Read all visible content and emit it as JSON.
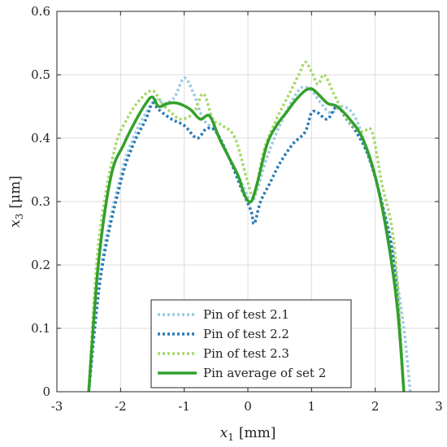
{
  "chart_data": {
    "type": "line",
    "title": "",
    "xlabel": {
      "var": "x",
      "sub": "1",
      "unit": "[mm]"
    },
    "ylabel": {
      "var": "x",
      "sub": "3",
      "unit": "[μm]"
    },
    "xlim": [
      -3,
      3
    ],
    "ylim": [
      0,
      0.6
    ],
    "xticks": [
      -3,
      -2,
      -1,
      0,
      1,
      2,
      3
    ],
    "yticks": [
      0,
      0.1,
      0.2,
      0.3,
      0.4,
      0.5,
      0.6
    ],
    "xtick_labels": [
      "-3",
      "-2",
      "-1",
      "0",
      "1",
      "2",
      "3"
    ],
    "ytick_labels": [
      "0",
      "0.1",
      "0.2",
      "0.3",
      "0.4",
      "0.5",
      "0.6"
    ],
    "grid": true,
    "legend_position": "bottom-center",
    "series": [
      {
        "name": "Pin of test 2.1",
        "color": "#9ecae1",
        "style": "dotted",
        "x": [
          -2.5,
          -2.3,
          -2.0,
          -1.8,
          -1.6,
          -1.45,
          -1.3,
          -1.15,
          -1.0,
          -0.85,
          -0.7,
          -0.5,
          -0.3,
          -0.1,
          0.05,
          0.15,
          0.3,
          0.5,
          0.7,
          0.85,
          1.0,
          1.15,
          1.3,
          1.5,
          1.7,
          1.9,
          2.1,
          2.3,
          2.45,
          2.55
        ],
        "y": [
          0.0,
          0.2,
          0.34,
          0.4,
          0.44,
          0.46,
          0.455,
          0.465,
          0.495,
          0.47,
          0.43,
          0.41,
          0.37,
          0.33,
          0.3,
          0.32,
          0.37,
          0.42,
          0.46,
          0.48,
          0.475,
          0.455,
          0.44,
          0.45,
          0.43,
          0.37,
          0.3,
          0.2,
          0.1,
          0.0
        ]
      },
      {
        "name": "Pin of test 2.2",
        "color": "#2c7bb6",
        "style": "dotted",
        "x": [
          -2.5,
          -2.3,
          -2.0,
          -1.8,
          -1.6,
          -1.5,
          -1.4,
          -1.2,
          -1.0,
          -0.8,
          -0.65,
          -0.5,
          -0.3,
          -0.1,
          0.05,
          0.1,
          0.2,
          0.35,
          0.5,
          0.7,
          0.9,
          1.0,
          1.1,
          1.25,
          1.4,
          1.55,
          1.7,
          1.9,
          2.1,
          2.3,
          2.45
        ],
        "y": [
          0.0,
          0.19,
          0.33,
          0.39,
          0.43,
          0.455,
          0.445,
          0.43,
          0.42,
          0.4,
          0.415,
          0.41,
          0.37,
          0.32,
          0.285,
          0.265,
          0.3,
          0.33,
          0.36,
          0.39,
          0.41,
          0.44,
          0.44,
          0.43,
          0.45,
          0.43,
          0.41,
          0.37,
          0.3,
          0.2,
          0.0
        ]
      },
      {
        "name": "Pin of test 2.3",
        "color": "#a6d96a",
        "style": "dotted",
        "x": [
          -2.5,
          -2.35,
          -2.1,
          -1.9,
          -1.7,
          -1.5,
          -1.35,
          -1.2,
          -1.05,
          -0.85,
          -0.7,
          -0.55,
          -0.4,
          -0.2,
          0.0,
          0.1,
          0.25,
          0.45,
          0.65,
          0.8,
          0.9,
          1.0,
          1.1,
          1.2,
          1.35,
          1.5,
          1.65,
          1.8,
          1.95,
          2.1,
          2.3,
          2.45
        ],
        "y": [
          0.0,
          0.23,
          0.38,
          0.43,
          0.46,
          0.475,
          0.455,
          0.44,
          0.43,
          0.44,
          0.47,
          0.43,
          0.42,
          0.4,
          0.33,
          0.31,
          0.38,
          0.43,
          0.47,
          0.5,
          0.52,
          0.505,
          0.485,
          0.5,
          0.47,
          0.44,
          0.42,
          0.41,
          0.41,
          0.33,
          0.23,
          0.0
        ]
      },
      {
        "name": "Pin average of set 2",
        "color": "#33a02c",
        "style": "solid",
        "x": [
          -2.5,
          -2.35,
          -2.15,
          -1.95,
          -1.75,
          -1.6,
          -1.5,
          -1.4,
          -1.25,
          -1.1,
          -0.9,
          -0.75,
          -0.6,
          -0.45,
          -0.3,
          -0.15,
          -0.05,
          0.05,
          0.15,
          0.3,
          0.45,
          0.6,
          0.75,
          0.9,
          1.0,
          1.1,
          1.25,
          1.4,
          1.6,
          1.8,
          2.0,
          2.2,
          2.35,
          2.45
        ],
        "y": [
          0.0,
          0.2,
          0.34,
          0.39,
          0.43,
          0.455,
          0.465,
          0.45,
          0.455,
          0.455,
          0.445,
          0.43,
          0.435,
          0.4,
          0.37,
          0.34,
          0.31,
          0.3,
          0.33,
          0.39,
          0.42,
          0.44,
          0.46,
          0.475,
          0.478,
          0.47,
          0.455,
          0.45,
          0.43,
          0.4,
          0.34,
          0.24,
          0.13,
          0.0
        ]
      }
    ]
  }
}
